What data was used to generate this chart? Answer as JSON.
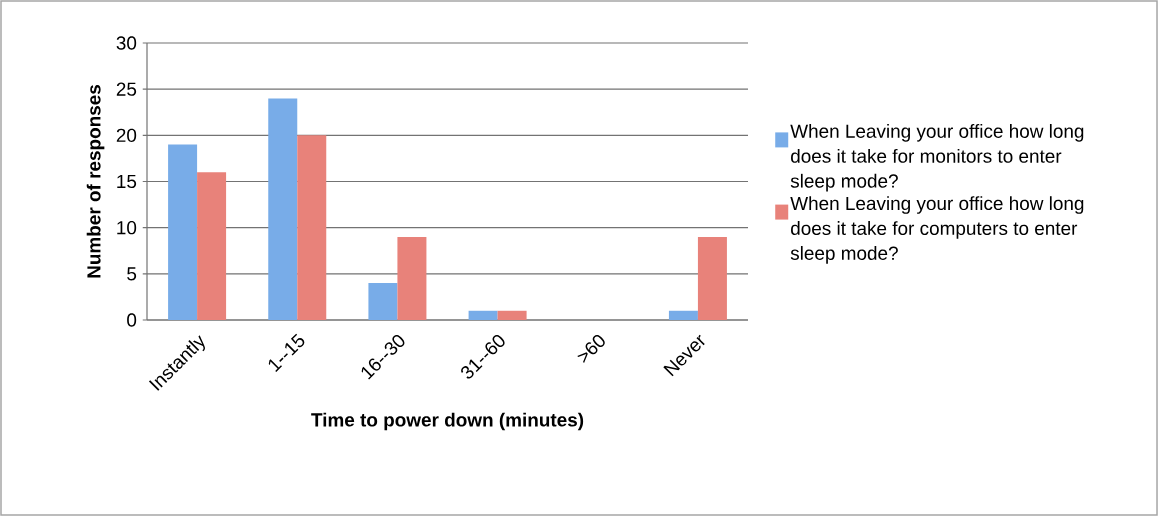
{
  "chart_data": {
    "type": "bar",
    "xlabel": "Time to power down (minutes)",
    "ylabel": "Number of responses",
    "categories": [
      "Instantly",
      "1--15",
      "16--30",
      "31--60",
      ">60",
      "Never"
    ],
    "series": [
      {
        "name": "When Leaving your office how long does it take for monitors to enter sleep mode?",
        "color": "#78ace8",
        "values": [
          19,
          24,
          4,
          1,
          0,
          1
        ]
      },
      {
        "name": "When Leaving your office how long does it take for computers to enter sleep mode?",
        "color": "#e8827a",
        "values": [
          16,
          20,
          9,
          1,
          0,
          9
        ]
      }
    ],
    "ylim": [
      0,
      30
    ],
    "yticks": [
      0,
      5,
      10,
      15,
      20,
      25,
      30
    ],
    "grid": "y",
    "legend": "right"
  }
}
